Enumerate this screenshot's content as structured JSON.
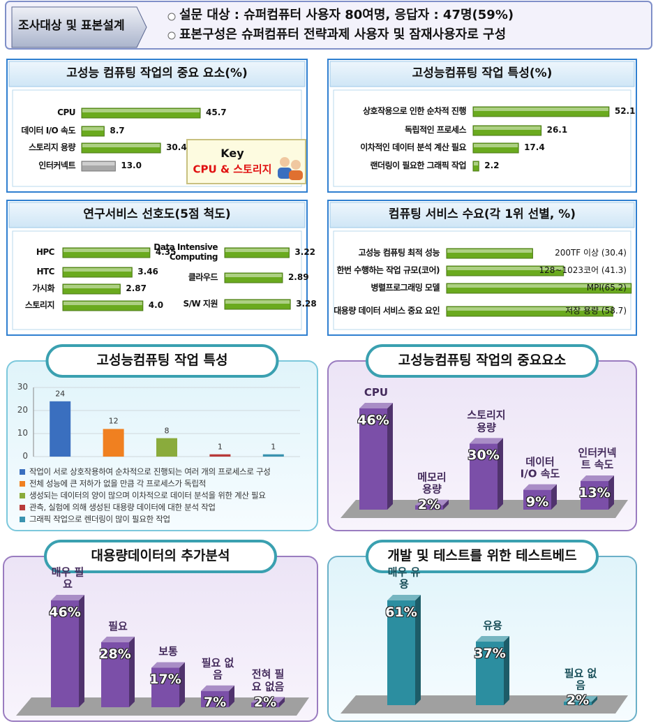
{
  "header": {
    "tag": "조사대상 및 표본설계",
    "lines": [
      "설문 대상 : 슈퍼컴퓨터 사용자 80여명, 응답자 : 47명(59%)",
      "표본구성은 슈퍼컴퓨터 전략과제 사용자 및 잠재사용자로 구성"
    ]
  },
  "chart_data": [
    {
      "type": "bar",
      "orientation": "horizontal",
      "title": "고성능 컴퓨팅 작업의 중요 요소(%)",
      "categories": [
        "CPU",
        "데이터 I/O 속도",
        "스토리지 용량",
        "인터커넥트"
      ],
      "values": [
        45.7,
        8.7,
        30.4,
        13.0
      ],
      "value_labels": [
        "45.7",
        "8.7",
        "30.4",
        "13.0"
      ],
      "colors": [
        "#6aaa1e",
        "#6aaa1e",
        "#6aaa1e",
        "#a8a8a8"
      ],
      "key_title": "Key",
      "key_text": "CPU & 스토리지"
    },
    {
      "type": "bar",
      "orientation": "horizontal",
      "title": "고성능컴퓨팅 작업 특성(%)",
      "categories": [
        "상호작용으로 인한 순차적 진행",
        "독립적인 프로세스",
        "이차적인 데이터 분석 계산 필요",
        "랜더링이 필요한 그래픽 작업"
      ],
      "values": [
        52.1,
        26.1,
        17.4,
        2.2
      ],
      "color": "#6aaa1e"
    },
    {
      "type": "bar",
      "orientation": "horizontal",
      "title": "연구서비스 선호도(5점 척도)",
      "categories": [
        "HPC",
        "HTC",
        "가시화",
        "스토리지",
        "Data Intensive Computing",
        "클라우드",
        "S/W 지원"
      ],
      "values": [
        4.35,
        3.46,
        2.87,
        4.0,
        3.22,
        2.89,
        3.28
      ],
      "value_labels": [
        "4.35",
        "3.46",
        "2.87",
        "4.0",
        "3.22",
        "2.89",
        "3.28"
      ],
      "color": "#6aaa1e"
    },
    {
      "type": "bar",
      "orientation": "horizontal",
      "title": "컴퓨팅 서비스 수요(각 1위 선별, %)",
      "categories": [
        "고성능 컴퓨팅 최적 성능",
        "한번 수행하는 작업 규모(코어)",
        "병렬프로그래밍 모델",
        "대용량 데이터 서비스 중요 요인"
      ],
      "values": [
        30.4,
        41.3,
        65.2,
        58.7
      ],
      "value_labels": [
        "200TF 이상 (30.4)",
        "128~1023코어 (41.3)",
        "MPI(65.2)",
        "저장 용량 (58.7)"
      ],
      "color": "#6aaa1e"
    },
    {
      "type": "bar",
      "title": "고성능컴퓨팅 작업 특성",
      "categories": [
        "작업이 서로 상호작용하여 순차적으로 진행되는 여러 개의 프로세스로 구성",
        "전체 성능에 큰 저하가 없을 만큼 각 프로세스가 독립적",
        "생성되는 데이터의 양이 많으며 이차적으로 데이터 분석을 위한 계산 필요",
        "관측, 실험에 의해 생성된 대용량 데이터에 대한 분석 작업",
        "그래픽 작업으로 렌더링이 많이 필요한 작업"
      ],
      "values": [
        24,
        12,
        8,
        1,
        1
      ],
      "colors": [
        "#3a6fbf",
        "#f08020",
        "#8aab3c",
        "#b83a3a",
        "#3a93b0"
      ],
      "ylim": [
        0,
        30
      ],
      "yticks": [
        0,
        10,
        20,
        30
      ],
      "grid": true
    },
    {
      "type": "bar",
      "style": "3d",
      "title": "고성능컴퓨팅 작업의 중요요소",
      "categories": [
        "CPU",
        "메모리 용량",
        "스토리지 용량",
        "데이터I/O 속도",
        "인터커넥트 속도"
      ],
      "values": [
        46,
        2,
        30,
        9,
        13
      ],
      "value_labels": [
        "46%",
        "2%",
        "30%",
        "9%",
        "13%"
      ],
      "color": "#7b4fa8"
    },
    {
      "type": "bar",
      "style": "3d",
      "title": "대용량데이터의 추가분석",
      "categories": [
        "매우 필요",
        "필요",
        "보통",
        "필요 없음",
        "전혀 필요 없음"
      ],
      "values": [
        46,
        28,
        17,
        7,
        2
      ],
      "value_labels": [
        "46%",
        "28%",
        "17%",
        "7%",
        "2%"
      ],
      "color": "#7b4fa8"
    },
    {
      "type": "bar",
      "style": "3d",
      "title": "개발 및 테스트를 위한 테스트베드",
      "categories": [
        "매우 유용",
        "유용",
        "필요 없음"
      ],
      "values": [
        61,
        37,
        2
      ],
      "value_labels": [
        "61%",
        "37%",
        "2%"
      ],
      "color": "#2c8ea0"
    }
  ]
}
